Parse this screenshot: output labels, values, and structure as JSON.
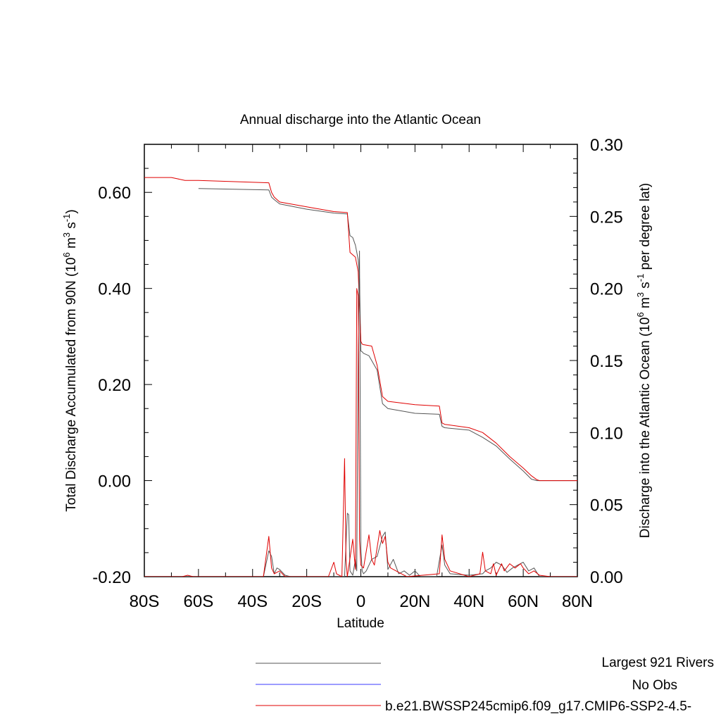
{
  "chart_data": {
    "type": "line",
    "title": "Annual discharge into the Atlantic Ocean",
    "xlabel": "Latitude",
    "ylabel_left": "Total Discharge Accumulated from 90N (10^6 m^3 s^-1)",
    "ylabel_right": "Discharge into the Atlantic Ocean (10^6 m^3 s^-1 per degree lat)",
    "xlim": [
      -80,
      80
    ],
    "ylim_left": [
      -0.2,
      0.7
    ],
    "ylim_right": [
      0,
      0.3
    ],
    "x_ticks": [
      -80,
      -60,
      -40,
      -20,
      0,
      20,
      40,
      60,
      80
    ],
    "x_tick_labels": [
      "80S",
      "60S",
      "40S",
      "20S",
      "0",
      "20N",
      "40N",
      "60N",
      "80N"
    ],
    "y_left_ticks": [
      -0.2,
      0.0,
      0.2,
      0.4,
      0.6
    ],
    "y_left_tick_labels": [
      "-0.20",
      "0.00",
      "0.20",
      "0.40",
      "0.60"
    ],
    "y_right_ticks": [
      0,
      0.05,
      0.1,
      0.15,
      0.2,
      0.25,
      0.3
    ],
    "y_right_tick_labels": [
      "0.00",
      "0.05",
      "0.10",
      "0.15",
      "0.20",
      "0.25",
      "0.30"
    ],
    "legend_position": "bottom",
    "series": [
      {
        "name": "Largest 921 Rivers",
        "color": "#555555",
        "axis": "left",
        "x": [
          -60,
          -34,
          -33,
          -32,
          -30,
          -20,
          -10,
          -5,
          -4,
          -3,
          -2,
          -1,
          -0.5,
          0,
          0.5,
          1,
          3,
          6,
          8,
          10,
          20,
          29,
          30,
          31,
          40,
          45,
          50,
          55,
          60,
          63,
          65,
          70,
          80
        ],
        "y": [
          0.608,
          0.605,
          0.59,
          0.585,
          0.576,
          0.565,
          0.557,
          0.555,
          0.51,
          0.506,
          0.49,
          0.46,
          0.42,
          0.27,
          0.268,
          0.265,
          0.26,
          0.23,
          0.16,
          0.15,
          0.14,
          0.138,
          0.113,
          0.11,
          0.105,
          0.09,
          0.072,
          0.045,
          0.02,
          0.003,
          0.0,
          0.0,
          0.0
        ]
      },
      {
        "name": "No Obs",
        "color": "#3b3bff",
        "axis": "left",
        "x": [],
        "y": []
      },
      {
        "name": "b.e21.BWSSP245cmip6.f09_g17.CMIP6-SSP2-4.5-",
        "color": "#e00000",
        "axis": "left",
        "x": [
          -80,
          -70,
          -65,
          -60,
          -34,
          -33,
          -32,
          -30,
          -20,
          -10,
          -5,
          -4,
          -2,
          -1,
          0,
          0.5,
          1,
          4,
          6,
          8,
          10,
          20,
          29,
          30,
          31,
          40,
          45,
          50,
          55,
          60,
          63,
          65,
          66,
          70,
          80
        ],
        "y": [
          0.631,
          0.631,
          0.625,
          0.625,
          0.62,
          0.6,
          0.59,
          0.58,
          0.57,
          0.56,
          0.558,
          0.475,
          0.465,
          0.435,
          0.29,
          0.284,
          0.283,
          0.28,
          0.24,
          0.175,
          0.165,
          0.158,
          0.155,
          0.12,
          0.117,
          0.11,
          0.1,
          0.078,
          0.05,
          0.026,
          0.01,
          0.002,
          0.0,
          0.0,
          0.0
        ]
      },
      {
        "name": "Largest 921 Rivers",
        "color": "#555555",
        "axis": "right",
        "x": [
          -80,
          -36,
          -34,
          -33,
          -32,
          -31,
          -30,
          -28,
          -26,
          -6,
          -5,
          -4.5,
          -4,
          -3,
          -2,
          -1.5,
          -1,
          -0.5,
          0,
          0.5,
          1,
          2,
          4,
          6,
          8,
          9,
          10,
          12,
          14,
          16,
          18,
          20,
          22,
          28,
          30,
          31,
          33,
          40,
          45,
          46,
          48,
          50,
          52,
          54,
          56,
          58,
          60,
          62,
          64,
          66,
          70,
          80
        ],
        "y": [
          0,
          0,
          0.018,
          0.014,
          0.002,
          0.006,
          0.005,
          0.001,
          0,
          0,
          0.044,
          0.043,
          0.004,
          0.001,
          0.012,
          0.004,
          0.16,
          0.226,
          0.02,
          0.004,
          0.002,
          0.004,
          0.012,
          0.014,
          0.028,
          0.031,
          0.005,
          0.012,
          0.002,
          0.004,
          0.001,
          0.004,
          0,
          0,
          0.022,
          0.008,
          0.002,
          0.001,
          0.002,
          0.004,
          0.006,
          0.01,
          0.008,
          0.003,
          0.006,
          0.008,
          0.01,
          0.004,
          0.006,
          0,
          0,
          0
        ]
      },
      {
        "name": "b.e21.BWSSP245cmip6.f09_g17.CMIP6-SSP2-4.5-",
        "color": "#e00000",
        "axis": "right",
        "x": [
          -80,
          -66,
          -64,
          -62,
          -36,
          -34,
          -33,
          -32,
          -30,
          -28,
          -12,
          -10,
          -9,
          -7,
          -6,
          -5.5,
          -5,
          -3,
          -2,
          -1.5,
          -1,
          -0.5,
          0,
          1,
          3,
          4,
          5,
          7,
          8,
          9,
          10,
          11,
          13,
          15,
          17,
          29,
          30,
          31,
          33,
          40,
          44,
          45,
          46,
          48,
          49,
          50,
          52,
          53,
          55,
          57,
          59,
          60,
          62,
          64,
          66,
          70,
          80
        ],
        "y": [
          0,
          0,
          0.001,
          0,
          0,
          0.028,
          0.006,
          0.002,
          0.004,
          0,
          0,
          0.01,
          0.002,
          0,
          0.082,
          0.012,
          0,
          0.026,
          0.005,
          0.2,
          0.195,
          0.025,
          0.008,
          0.006,
          0.029,
          0.012,
          0.008,
          0.032,
          0.023,
          0.028,
          0.01,
          0.006,
          0.004,
          0.002,
          0,
          0.002,
          0.029,
          0.012,
          0.004,
          0,
          0.002,
          0.017,
          0.004,
          0.002,
          0.009,
          0.001,
          0.009,
          0.004,
          0.009,
          0.006,
          0.009,
          0.006,
          0.002,
          0.004,
          0.001,
          0,
          0
        ]
      }
    ]
  }
}
